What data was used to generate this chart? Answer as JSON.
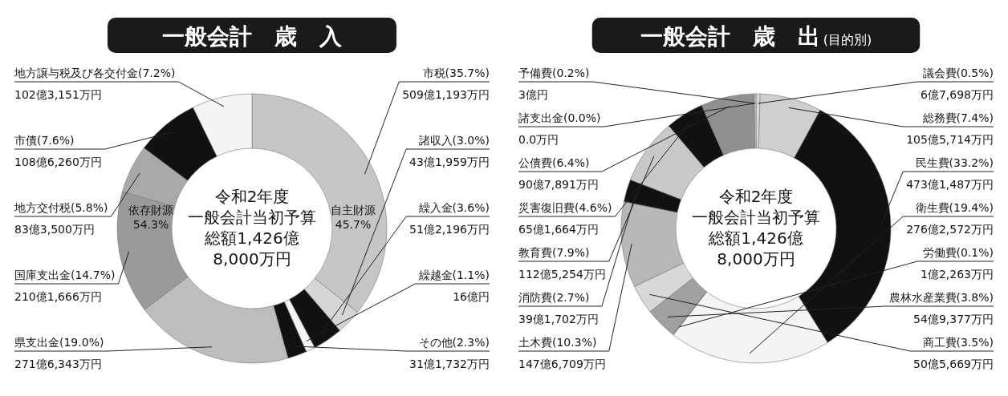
{
  "chart_data": [
    {
      "type": "donut",
      "title": "一般会計　歳　入",
      "categories": [
        "市税(35.7%)",
        "諸収入(3.0%)",
        "繰入金(3.6%)",
        "繰越金(1.1%)",
        "その他(2.3%)",
        "県支出金(19.0%)",
        "国庫支出金(14.7%)",
        "地方交付税(5.8%)",
        "市債(7.6%)",
        "地方譲与税及び各交付金(7.2%)"
      ],
      "values": [
        35.7,
        3.0,
        3.6,
        1.1,
        2.3,
        19.0,
        14.7,
        5.8,
        7.6,
        7.2
      ],
      "colors": [
        "#c6c6c6",
        "#d6d6d6",
        "#111111",
        "#f4f4f4",
        "#111111",
        "#bdbdbd",
        "#9a9a9a",
        "#a9a9a9",
        "#111111",
        "#f4f4f4"
      ],
      "annotations": [
        "令和2年度",
        "一般会計当初予算",
        "総額1,426億",
        "8,000万円",
        "自主財源",
        "45.7%",
        "依存財源",
        "54.3%",
        {
          "text": "509億1,193万円",
          "x": "市税(35.7%)"
        },
        {
          "text": "43億1,959万円",
          "x": "諸収入(3.0%)"
        },
        {
          "text": "51億2,196万円",
          "x": "繰入金(3.6%)"
        },
        {
          "text": "16億円",
          "x": "繰越金(1.1%)"
        },
        {
          "text": "31億1,732万円",
          "x": "その他(2.3%)"
        },
        {
          "text": "271億6,343万円",
          "x": "県支出金(19.0%)"
        },
        {
          "text": "210億1,666万円",
          "x": "国庫支出金(14.7%)"
        },
        {
          "text": "83億3,500万円",
          "x": "地方交付税(5.8%)"
        },
        {
          "text": "108億6,260万円",
          "x": "市債(7.6%)"
        },
        {
          "text": "102億3,151万円",
          "x": "地方譲与税及び各交付金(7.2%)"
        }
      ]
    },
    {
      "type": "donut",
      "title": "一般会計　歳　出",
      "subtitle": "(目的別)",
      "categories": [
        "議会費(0.5%)",
        "総務費(7.4%)",
        "民生費(33.2%)",
        "衛生費(19.4%)",
        "労働費(0.1%)",
        "農林水産業費(3.8%)",
        "商工費(3.5%)",
        "土木費(10.3%)",
        "消防費(2.7%)",
        "教育費(7.9%)",
        "災害復旧費(4.6%)",
        "公債費(6.4%)",
        "諸支出金(0.0%)",
        "予備費(0.2%)"
      ],
      "values": [
        0.5,
        7.4,
        33.2,
        19.4,
        0.1,
        3.8,
        3.5,
        10.3,
        2.7,
        7.9,
        4.6,
        6.4,
        0.0,
        0.2
      ],
      "colors": [
        "#d8d8d8",
        "#cfcfcf",
        "#111111",
        "#f4f4f4",
        "#8a8a8a",
        "#a0a0a0",
        "#d8d8d8",
        "#b8b8b8",
        "#111111",
        "#c8c8c8",
        "#111111",
        "#909090",
        "#f4f4f4",
        "#d0d0d0"
      ],
      "annotations": [
        "令和2年度",
        "一般会計当初予算",
        "総額1,426億",
        "8,000万円",
        {
          "text": "6億7,698万円",
          "x": "議会費(0.5%)"
        },
        {
          "text": "105億5,714万円",
          "x": "総務費(7.4%)"
        },
        {
          "text": "473億1,487万円",
          "x": "民生費(33.2%)"
        },
        {
          "text": "276億2,572万円",
          "x": "衛生費(19.4%)"
        },
        {
          "text": "1億2,263万円",
          "x": "労働費(0.1%)"
        },
        {
          "text": "54億9,377万円",
          "x": "農林水産業費(3.8%)"
        },
        {
          "text": "50億5,669万円",
          "x": "商工費(3.5%)"
        },
        {
          "text": "147億6,709万円",
          "x": "土木費(10.3%)"
        },
        {
          "text": "39億1,702万円",
          "x": "消防費(2.7%)"
        },
        {
          "text": "112億5,254万円",
          "x": "教育費(7.9%)"
        },
        {
          "text": "65億1,664万円",
          "x": "災害復旧費(4.6%)"
        },
        {
          "text": "90億7,891万円",
          "x": "公債費(6.4%)"
        },
        {
          "text": "0.0万円",
          "x": "諸支出金(0.0%)"
        },
        {
          "text": "3億円",
          "x": "予備費(0.2%)"
        }
      ]
    }
  ]
}
